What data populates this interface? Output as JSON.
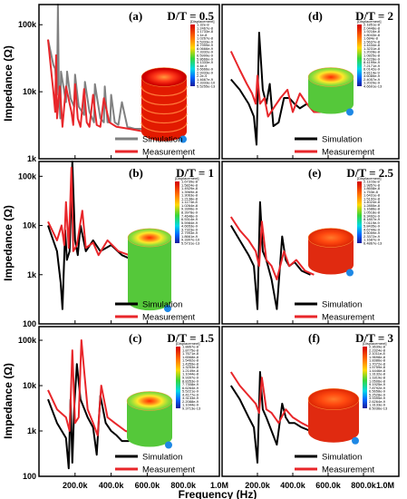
{
  "figure": {
    "ylabel": "Impedance (Ω)",
    "xlabel": "Frequency (Hz)",
    "colorbar_title": "[Displacement]"
  },
  "colors": {
    "simulation": "#000000",
    "simulation_a": "#808080",
    "measurement": "#e8262a"
  },
  "chart_data": [
    {
      "type": "line",
      "panel": "(a)",
      "title": "D/T = 0.5",
      "xlim": [
        0,
        1000000
      ],
      "ylim": [
        1000,
        200000
      ],
      "ylog": true,
      "yticks": [
        "100k",
        "10k",
        "1k"
      ],
      "legend_position": "bottom-right",
      "colorbar_labels": [
        "1.32e-8",
        "1.2467e-8",
        "1.1733e-8",
        "1.1e-8",
        "1.0267e-8",
        "9.5333e-9",
        "8.7999e-9",
        "8.0666e-9",
        "7.3332e-9",
        "6.5999e-9",
        "5.8666e-9",
        "5.1333e-9",
        "4.4e-9",
        "3.6666e-9",
        "2.9333e-9",
        "2.2e-9",
        "1.4667e-9",
        "7.3333e-10",
        "5.5255e-13"
      ],
      "series": [
        {
          "name": "Simulation",
          "x": [
            50000,
            80000,
            90000,
            100000,
            105000,
            110000,
            118000,
            122000,
            140000,
            150000,
            156000,
            175000,
            195000,
            200000,
            220000,
            250000,
            255000,
            280000,
            305000,
            310000,
            340000,
            360000,
            365000,
            380000,
            395000,
            400000,
            420000,
            440000,
            460000,
            490000,
            530000,
            560000,
            600000
          ],
          "y": [
            60000,
            25000,
            22000,
            9000,
            200000,
            12000,
            4000,
            20000,
            10000,
            7000,
            20000,
            8000,
            6000,
            18000,
            6000,
            4500,
            14000,
            5000,
            3500,
            13000,
            4000,
            3500,
            12000,
            3500,
            3500,
            9000,
            3500,
            3200,
            7000,
            3000,
            2800,
            2800,
            2800
          ]
        },
        {
          "name": "Measurement",
          "x": [
            50000,
            70000,
            80000,
            90000,
            95000,
            100000,
            115000,
            120000,
            130000,
            150000,
            180000,
            190000,
            200000,
            215000,
            230000,
            250000,
            265000,
            280000,
            300000,
            320000,
            340000,
            360000,
            390000,
            430000,
            500000,
            600000
          ],
          "y": [
            60000,
            18000,
            10000,
            5000,
            35000,
            4000,
            12000,
            8000,
            3000,
            12000,
            5000,
            3200,
            13000,
            4000,
            3000,
            11000,
            3500,
            3000,
            9000,
            3200,
            3000,
            8000,
            3500,
            3000,
            2800,
            2500
          ]
        }
      ]
    },
    {
      "type": "line",
      "panel": "(b)",
      "title": "D/T = 1",
      "xlim": [
        0,
        1000000
      ],
      "ylim": [
        100,
        200000
      ],
      "ylog": true,
      "yticks": [
        "100k",
        "10k",
        "1k",
        "100"
      ],
      "legend_position": "bottom-right",
      "colorbar_labels": [
        "1.6739e-8",
        "1.5824e-8",
        "1.4929e-8",
        "1.3969e-8",
        "1.3063e-8",
        "1.2138e-8",
        "1.1174e-8",
        "1.0264e-8",
        "9.3306e-9",
        "8.3978e-9",
        "7.4648e-9",
        "6.5314e-9",
        "5.5984e-9",
        "4.6653e-9",
        "3.7323e-9",
        "2.7993e-9",
        "1.8661e-9",
        "9.3307e-10",
        "5.5731e-13"
      ],
      "series": [
        {
          "name": "Simulation",
          "x": [
            50000,
            100000,
            120000,
            130000,
            145000,
            155000,
            170000,
            185000,
            200000,
            215000,
            230000,
            260000,
            300000,
            340000,
            400000,
            460000,
            520000
          ],
          "y": [
            10000,
            3000,
            700,
            200,
            8000,
            2000,
            3000,
            200000,
            5000,
            2500,
            10000,
            3000,
            5000,
            3000,
            4000,
            2500,
            2000
          ]
        },
        {
          "name": "Measurement",
          "x": [
            50000,
            100000,
            125000,
            140000,
            150000,
            165000,
            180000,
            190000,
            210000,
            240000,
            260000,
            300000,
            330000,
            380000,
            440000,
            500000
          ],
          "y": [
            12000,
            5000,
            10000,
            4000,
            30000,
            3500,
            150000,
            3000,
            4000,
            20000,
            3500,
            4500,
            2500,
            5000,
            3000,
            2500
          ]
        }
      ]
    },
    {
      "type": "line",
      "panel": "(c)",
      "title": "D/T = 1.5",
      "xlim": [
        0,
        1000000
      ],
      "ylim": [
        100,
        200000
      ],
      "ylog": true,
      "yticks": [
        "100k",
        "10k",
        "1k",
        "100"
      ],
      "legend_position": "bottom-right",
      "colorbar_labels": [
        "1.8867e-8",
        "1.8775e-8",
        "1.7671e-8",
        "1.6568e-8",
        "1.5462e-8",
        "1.4359e-8",
        "1.3253e-8",
        "1.2149e-8",
        "1.1044e-8",
        "9.9397e-9",
        "8.8353e-9",
        "7.7308e-9",
        "6.6264e-9",
        "5.5221e-9",
        "4.4177e-9",
        "3.3133e-9",
        "2.2088e-9",
        "1.1044e-9",
        "9.3713e-13"
      ],
      "series": [
        {
          "name": "Simulation",
          "x": [
            50000,
            100000,
            150000,
            165000,
            175000,
            185000,
            195000,
            210000,
            230000,
            270000,
            300000,
            320000,
            340000,
            370000,
            400000,
            430000,
            460000,
            500000
          ],
          "y": [
            5000,
            1500,
            700,
            150,
            5000,
            200,
            3000,
            30000,
            5000,
            2000,
            1200,
            300,
            6000,
            1500,
            1000,
            800,
            600,
            600
          ]
        },
        {
          "name": "Measurement",
          "x": [
            50000,
            100000,
            150000,
            170000,
            185000,
            200000,
            220000,
            235000,
            270000,
            300000,
            325000,
            345000,
            380000,
            420000,
            480000,
            520000
          ],
          "y": [
            8000,
            3000,
            2000,
            1000,
            60000,
            1500,
            2000,
            100000,
            3000,
            1500,
            800,
            10000,
            2000,
            1500,
            1000,
            900
          ]
        }
      ]
    },
    {
      "type": "line",
      "panel": "(d)",
      "title": "D/T = 2",
      "xlim": [
        0,
        1000000
      ],
      "ylim": [
        100,
        200000
      ],
      "ylog": true,
      "yticks": [],
      "legend_position": "bottom-right",
      "colorbar_labels": [
        "2.1851e-8",
        "2.0448e-8",
        "1.9216e-8",
        "1.8043e-8",
        "1.684e-8",
        "1.5637e-8",
        "1.4434e-8",
        "1.3231e-8",
        "1.2028e-8",
        "1.0825e-8",
        "9.6228e-9",
        "8.4199e-9",
        "7.2171e-9",
        "6.0142e-9",
        "4.8114e-9",
        "3.6085e-9",
        "2.4057e-9",
        "1.2029e-9",
        "4.6691e-13"
      ],
      "series": [
        {
          "name": "Simulation",
          "x": [
            50000,
            100000,
            150000,
            180000,
            195000,
            210000,
            230000,
            250000,
            270000,
            290000,
            320000,
            350000,
            380000,
            410000,
            440000,
            480000,
            520000,
            560000
          ],
          "y": [
            5000,
            3000,
            1500,
            800,
            200,
            50000,
            3000,
            1500,
            4000,
            500,
            600,
            2000,
            2000,
            1500,
            1200,
            1500,
            1000,
            1000
          ]
        },
        {
          "name": "Measurement",
          "x": [
            50000,
            100000,
            140000,
            170000,
            190000,
            200000,
            215000,
            240000,
            260000,
            290000,
            330000,
            370000,
            400000,
            440000,
            480000,
            520000,
            560000
          ],
          "y": [
            20000,
            8000,
            4000,
            2500,
            1500,
            6000,
            1500,
            2000,
            800,
            1200,
            2000,
            3000,
            1000,
            2500,
            1500,
            1000,
            1000
          ]
        }
      ]
    },
    {
      "type": "line",
      "panel": "(e)",
      "title": "D/T = 2.5",
      "xlim": [
        0,
        1000000
      ],
      "ylim": [
        100,
        200000
      ],
      "ylog": true,
      "yticks": [],
      "legend_position": "bottom-right",
      "colorbar_labels": [
        "2.1103e-8",
        "1.9857e-8",
        "1.8608e-8",
        "1.753e-8",
        "1.6431e-8",
        "1.5192e-8",
        "1.4024e-8",
        "1.2855e-8",
        "1.1686e-8",
        "1.0518e-8",
        "9.3492e-9",
        "8.1807e-9",
        "7.0119e-9",
        "5.8435e-9",
        "4.6744e-9",
        "3.5059e-9",
        "2.3372e-9",
        "1.1687e-9",
        "6.4867e-13"
      ],
      "series": [
        {
          "name": "Simulation",
          "x": [
            50000,
            100000,
            150000,
            180000,
            200000,
            215000,
            230000,
            250000,
            280000,
            310000,
            340000,
            360000,
            380000,
            410000,
            450000,
            500000
          ],
          "y": [
            10000,
            5000,
            2500,
            1500,
            200,
            30000,
            3000,
            2000,
            800,
            200,
            6000,
            2000,
            1500,
            1800,
            1200,
            1000
          ]
        },
        {
          "name": "Measurement",
          "x": [
            50000,
            100000,
            150000,
            190000,
            210000,
            225000,
            250000,
            280000,
            310000,
            350000,
            380000,
            420000,
            470000,
            520000
          ],
          "y": [
            15000,
            8000,
            5000,
            3000,
            1500,
            12000,
            2000,
            1500,
            800,
            3000,
            1500,
            2000,
            1200,
            1000
          ]
        }
      ]
    },
    {
      "type": "line",
      "panel": "(f)",
      "title": "D/T = 3",
      "xlim": [
        0,
        1000000
      ],
      "ylim": [
        100,
        200000
      ],
      "ylog": true,
      "yticks": [],
      "legend_position": "bottom-right",
      "colorbar_labels": [
        "2.3639e-8",
        "2.2324e-8",
        "2.1011e-8",
        "1.9698e-8",
        "1.8386e-8",
        "1.7072e-8",
        "1.5759e-8",
        "1.4446e-8",
        "1.3132e-8",
        "1.1819e-8",
        "1.0506e-8",
        "9.1925e-9",
        "7.8792e-9",
        "6.5658e-9",
        "5.2528e-9",
        "3.9395e-9",
        "2.6264e-9",
        "1.3133e-9",
        "8.5036e-13"
      ],
      "series": [
        {
          "name": "Simulation",
          "x": [
            50000,
            100000,
            150000,
            180000,
            200000,
            215000,
            230000,
            250000,
            280000,
            310000,
            340000,
            360000,
            380000,
            410000,
            450000,
            500000
          ],
          "y": [
            10000,
            5000,
            2000,
            1200,
            200,
            20000,
            3000,
            2000,
            1000,
            500,
            4000,
            2000,
            1500,
            1500,
            1200,
            1000
          ]
        },
        {
          "name": "Measurement",
          "x": [
            50000,
            100000,
            150000,
            190000,
            210000,
            225000,
            250000,
            280000,
            320000,
            360000,
            400000,
            450000,
            500000
          ],
          "y": [
            20000,
            10000,
            6000,
            4000,
            2500,
            15000,
            3000,
            2500,
            1500,
            3000,
            2000,
            1500,
            1200
          ]
        }
      ]
    }
  ],
  "x_axis": {
    "left_ticks": [
      "200.0k",
      "400.0k",
      "600.0k",
      "800.0k",
      "1.0M"
    ],
    "right_ticks": [
      "200.0k",
      "400.0k",
      "600.0k",
      "800.0k",
      "1.0M"
    ]
  }
}
